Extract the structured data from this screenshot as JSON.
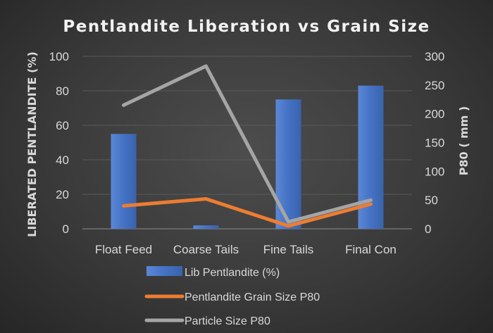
{
  "chart_data": {
    "type": "bar",
    "title": "Pentlandite Liberation vs Grain Size",
    "categories": [
      "Float Feed",
      "Coarse Tails",
      "Fine Tails",
      "Final Con"
    ],
    "ylabel": "LIBERATED PENTLANDITE (%)",
    "y2label": "P80 ( mm )",
    "ylim": [
      0,
      100
    ],
    "y2lim": [
      0,
      300
    ],
    "yticks": [
      "0",
      "20",
      "40",
      "60",
      "80",
      "100"
    ],
    "y2ticks": [
      "0",
      "50",
      "100",
      "150",
      "200",
      "250",
      "300"
    ],
    "grid": true,
    "legend_position": "bottom",
    "series": [
      {
        "name": "Lib Pentlandite (%)",
        "type": "bar",
        "axis": "left",
        "color": "#4472C4",
        "values": [
          55,
          2,
          75,
          83
        ]
      },
      {
        "name": "Pentlandite Grain Size P80",
        "type": "line",
        "axis": "right",
        "color": "#ED7D31",
        "values": [
          40,
          52,
          5,
          43
        ]
      },
      {
        "name": "Particle Size P80",
        "type": "line",
        "axis": "right",
        "color": "#A5A5A5",
        "values": [
          215,
          283,
          12,
          50
        ]
      }
    ]
  }
}
